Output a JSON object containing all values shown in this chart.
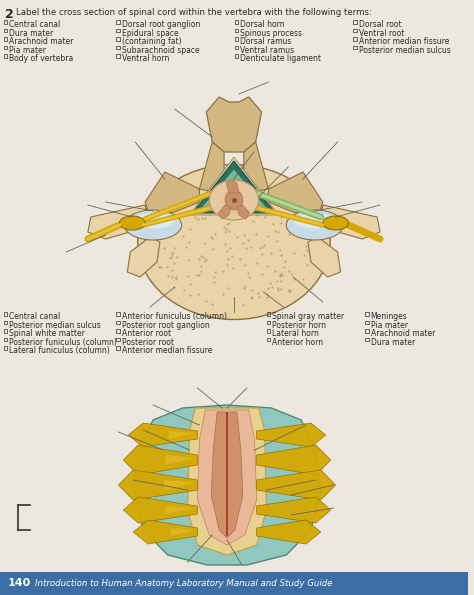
{
  "bg_color": "#ede8df",
  "page_number": "140",
  "footer_text": "Introduction to Human Anatomy Laboratory Manual and Study Guide",
  "title_number": "2",
  "title_text": "Label the cross section of spinal cord within the vertebra with the following terms:",
  "top_terms_col1": [
    "Central canal",
    "Dura mater",
    "Arachnoid mater",
    "Pia mater",
    "Body of vertebra"
  ],
  "top_terms_col2": [
    "Dorsal root ganglion",
    "Epidural space",
    "(containing fat)",
    "Subarachnoid space",
    "Ventral horn"
  ],
  "top_terms_col3": [
    "Dorsal horn",
    "Spinous process",
    "Dorsal ramus",
    "Ventral ramus",
    "Denticulate ligament"
  ],
  "top_terms_col4": [
    "Dorsal root",
    "Ventral root",
    "Anterior median fissure",
    "Posterior median sulcus"
  ],
  "bottom_terms_col1": [
    "Central canal",
    "Posterior median sulcus",
    "Spinal white matter",
    "Posterior funiculus (column)",
    "Lateral funiculus (column)"
  ],
  "bottom_terms_col2": [
    "Anterior funiculus (column)",
    "Posterior root ganglion",
    "Anterior root",
    "Posterior root",
    "Anterior median fissure"
  ],
  "bottom_terms_col3": [
    "Spinal gray matter",
    "Posterior horn",
    "Lateral horn",
    "Anterior horn"
  ],
  "bottom_terms_col4": [
    "Meninges",
    "Pia mater",
    "Arachnoid mater",
    "Dura mater"
  ],
  "footer_bg": "#3a6ea5",
  "text_color": "#2a2a2a",
  "bone_color": "#d4b882",
  "bone_light": "#e8d4a8",
  "bone_edge": "#8B7040",
  "dura_color": "#2d7060",
  "arachnoid_color": "#8dc4a0",
  "cord_color": "#e8c8a0",
  "gray_matter": "#c8906a",
  "nerve_yellow": "#d4a800",
  "nerve_yellow2": "#e8c040",
  "disc_blue": "#b8ccd8",
  "meninges_teal": "#80b8b0"
}
